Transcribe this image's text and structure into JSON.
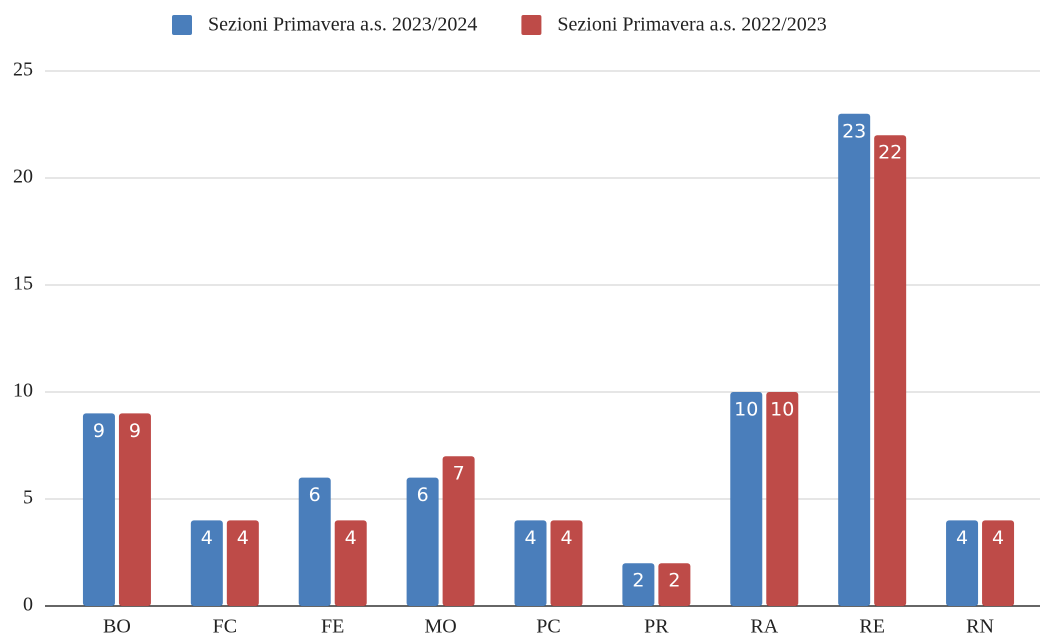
{
  "chart_data": {
    "type": "bar",
    "categories": [
      "BO",
      "FC",
      "FE",
      "MO",
      "PC",
      "PR",
      "RA",
      "RE",
      "RN"
    ],
    "series": [
      {
        "name": "Sezioni Primavera a.s. 2023/2024",
        "color": "#4a7ebb",
        "values": [
          9,
          4,
          6,
          6,
          4,
          2,
          10,
          23,
          4
        ]
      },
      {
        "name": "Sezioni Primavera a.s. 2022/2023",
        "color": "#be4b48",
        "values": [
          9,
          4,
          4,
          7,
          4,
          2,
          10,
          22,
          4
        ]
      }
    ],
    "ylim": [
      0,
      25
    ],
    "yticks": [
      0,
      5,
      10,
      15,
      20,
      25
    ],
    "grid": true,
    "legend": "top"
  }
}
